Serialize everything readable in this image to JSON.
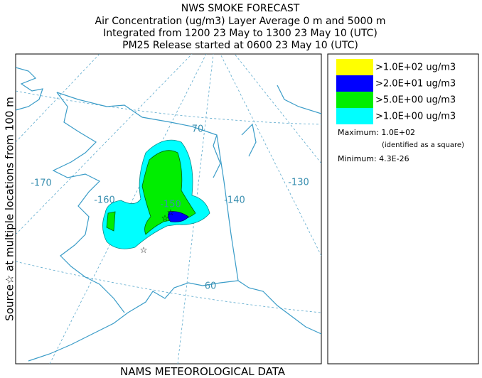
{
  "header": {
    "lines": [
      "NWS SMOKE FORECAST",
      "Air Concentration (ug/m3) Layer Average    0 m and  5000 m",
      "Integrated from 1200 23 May to 1300 23 May 10 (UTC)",
      "PM25 Release started at 0600 23 May 10 (UTC)"
    ]
  },
  "side_label": "Source☆  at multiple locations    from  100 m",
  "footer": "NAMS METEOROLOGICAL DATA",
  "legend": {
    "items": [
      {
        "label": ">1.0E+02 ug/m3",
        "color": "#ffff00"
      },
      {
        "label": ">2.0E+01 ug/m3",
        "color": "#0000ff"
      },
      {
        "label": ">5.0E+00 ug/m3",
        "color": "#00ee00"
      },
      {
        "label": ">1.0E+00 ug/m3",
        "color": "#00ffff"
      }
    ],
    "maximum": "Maximum: 1.0E+02",
    "max_note": "(identified as a square)",
    "minimum": "Minimum: 4.3E-26"
  },
  "map": {
    "labels": [
      "-170",
      "-160",
      "-150",
      "-140",
      "-130",
      "70",
      "60"
    ]
  }
}
